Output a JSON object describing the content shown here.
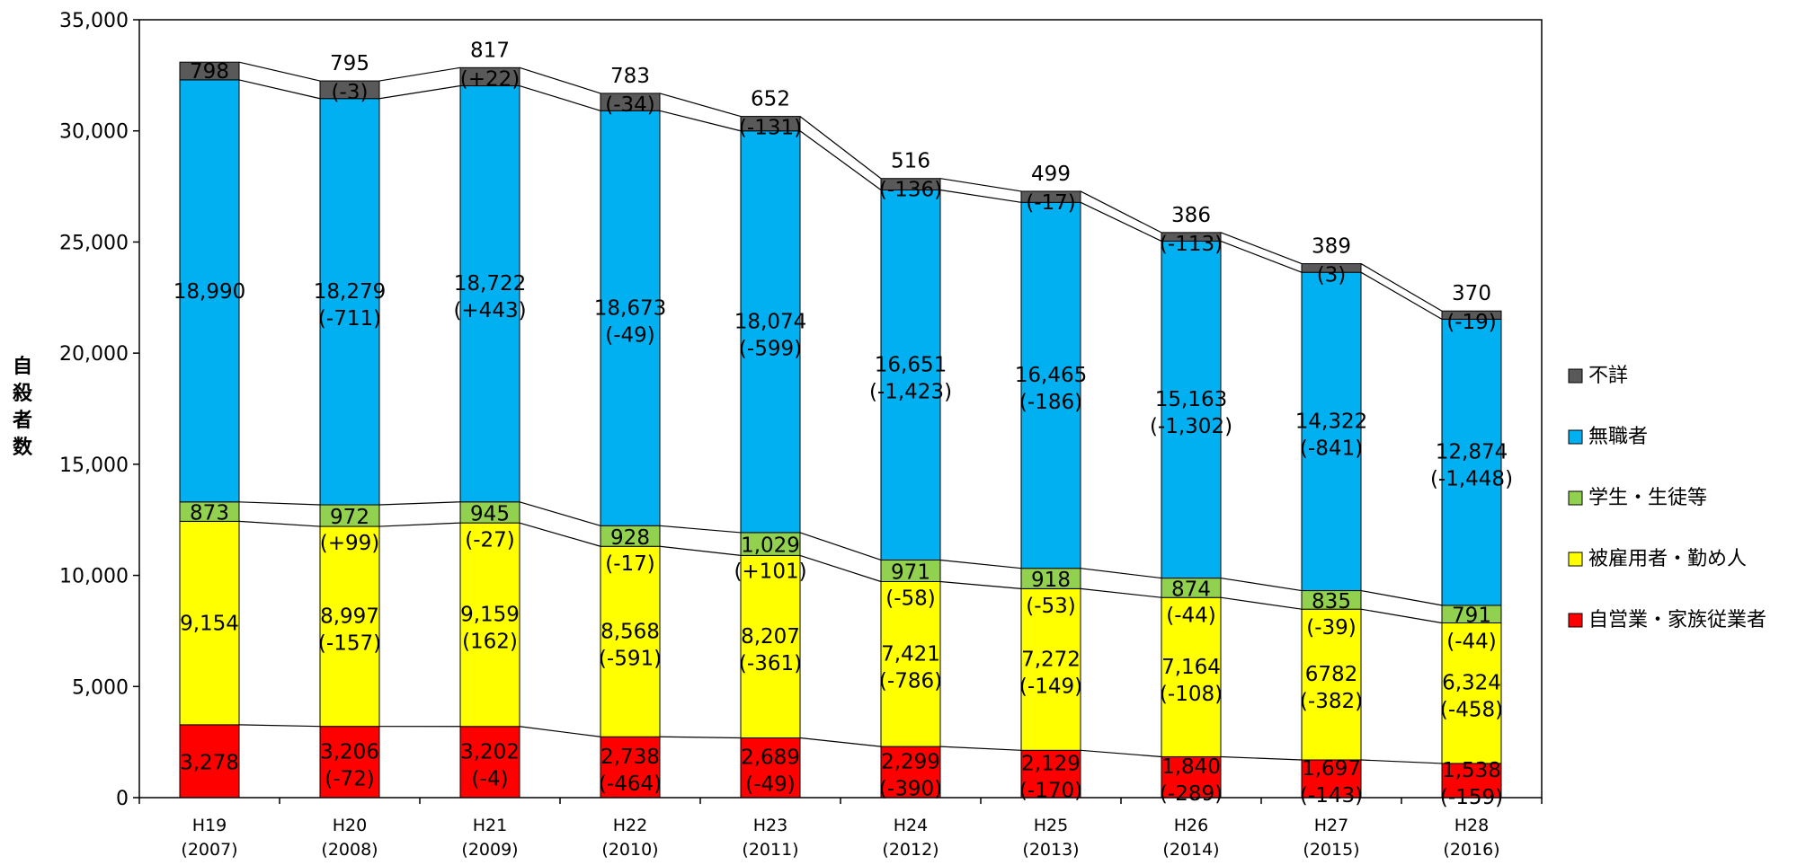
{
  "chart_data": {
    "type": "bar",
    "stacked": true,
    "title": "",
    "xlabel": "",
    "ylabel": "自殺者数",
    "ylim": [
      0,
      35000
    ],
    "yticks": [
      "0",
      "5,000",
      "10,000",
      "15,000",
      "20,000",
      "25,000",
      "30,000",
      "35,000"
    ],
    "yticks_values": [
      0,
      5000,
      10000,
      15000,
      20000,
      25000,
      30000,
      35000
    ],
    "grid": false,
    "legend_position": "right",
    "categories": [
      {
        "year": "H19",
        "western": "(2007)"
      },
      {
        "year": "H20",
        "western": "(2008)"
      },
      {
        "year": "H21",
        "western": "(2009)"
      },
      {
        "year": "H22",
        "western": "(2010)"
      },
      {
        "year": "H23",
        "western": "(2011)"
      },
      {
        "year": "H24",
        "western": "(2012)"
      },
      {
        "year": "H25",
        "western": "(2013)"
      },
      {
        "year": "H26",
        "western": "(2014)"
      },
      {
        "year": "H27",
        "western": "(2015)"
      },
      {
        "year": "H28",
        "western": "(2016)"
      }
    ],
    "series": [
      {
        "name": "自営業・家族従業者",
        "color": "#ff0000",
        "values": [
          3278,
          3206,
          3202,
          2738,
          2689,
          2299,
          2129,
          1840,
          1697,
          1538
        ],
        "labels": [
          "3,278",
          "3,206",
          "3,202",
          "2,738",
          "2,689",
          "2,299",
          "2,129",
          "1,840",
          "1,697",
          "1,538"
        ],
        "changes": [
          "",
          "(-72)",
          "(-4)",
          "(-464)",
          "(-49)",
          "(-390)",
          "(-170)",
          "(-289)",
          "(-143)",
          "(-159)"
        ]
      },
      {
        "name": "被雇用者・勤め人",
        "color": "#ffff00",
        "values": [
          9154,
          8997,
          9159,
          8568,
          8207,
          7421,
          7272,
          7164,
          6782,
          6324
        ],
        "labels": [
          "9,154",
          "8,997",
          "9,159",
          "8,568",
          "8,207",
          "7,421",
          "7,272",
          "7,164",
          "6782",
          "6,324"
        ],
        "changes": [
          "",
          "(-157)",
          "(162)",
          "(-591)",
          "(-361)",
          "(-786)",
          "(-149)",
          "(-108)",
          "(-382)",
          "(-458)"
        ]
      },
      {
        "name": "学生・生徒等",
        "color": "#92d050",
        "values": [
          873,
          972,
          945,
          928,
          1029,
          971,
          918,
          874,
          835,
          791
        ],
        "labels": [
          "873",
          "972",
          "945",
          "928",
          "1,029",
          "971",
          "918",
          "874",
          "835",
          "791"
        ],
        "changes": [
          "",
          "(+99)",
          "(-27)",
          "(-17)",
          "(+101)",
          "(-58)",
          "(-53)",
          "(-44)",
          "(-39)",
          "(-44)"
        ]
      },
      {
        "name": "無職者",
        "color": "#00b0f0",
        "values": [
          18990,
          18279,
          18722,
          18673,
          18074,
          16651,
          16465,
          15163,
          14322,
          12874
        ],
        "labels": [
          "18,990",
          "18,279",
          "18,722",
          "18,673",
          "18,074",
          "16,651",
          "16,465",
          "15,163",
          "14,322",
          "12,874"
        ],
        "changes": [
          "",
          "(-711)",
          "(+443)",
          "(-49)",
          "(-599)",
          "(-1,423)",
          "(-186)",
          "(-1,302)",
          "(-841)",
          "(-1,448)"
        ]
      },
      {
        "name": "不詳",
        "color": "#595959",
        "values": [
          798,
          795,
          817,
          783,
          652,
          516,
          499,
          386,
          389,
          370
        ],
        "labels": [
          "798",
          "795",
          "817",
          "783",
          "652",
          "516",
          "499",
          "386",
          "389",
          "370"
        ],
        "changes": [
          "",
          "(-3)",
          "(+22)",
          "(-34)",
          "(-131)",
          "(-136)",
          "(-17)",
          "(-113)",
          "(3)",
          "(-19)"
        ]
      }
    ]
  }
}
